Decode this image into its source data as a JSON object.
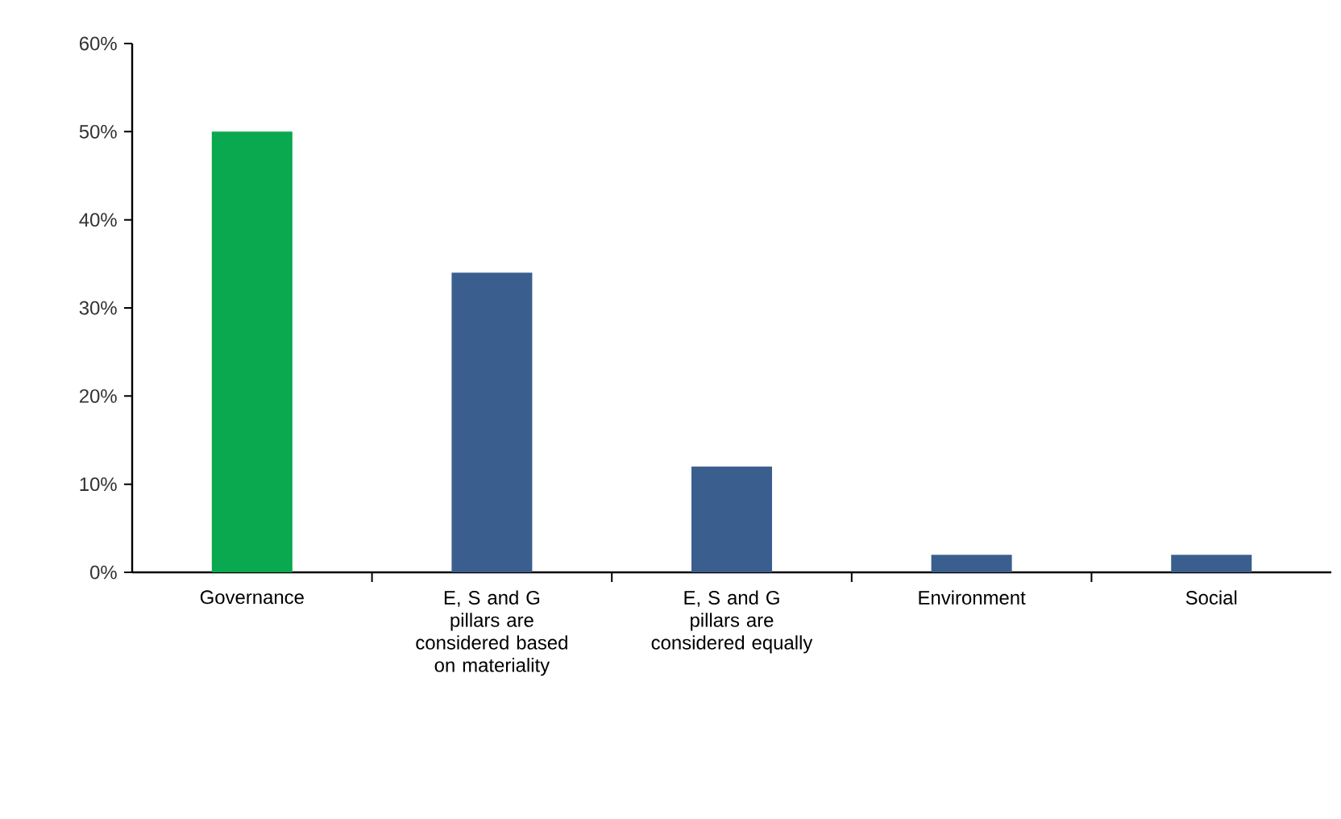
{
  "chart_data": {
    "type": "bar",
    "categories": [
      "Governance",
      "E, S and G pillars are considered based on materiality",
      "E, S and G pillars are considered equally",
      "Environment",
      "Social"
    ],
    "values": [
      50,
      34,
      12,
      2,
      2
    ],
    "colors": [
      "#0aa84f",
      "#3a5f8f",
      "#3a5f8f",
      "#3a5f8f",
      "#3a5f8f"
    ],
    "ylim": [
      0,
      60
    ],
    "yticks": [
      {
        "value": 0,
        "label": "0%"
      },
      {
        "value": 10,
        "label": "10%"
      },
      {
        "value": 20,
        "label": "20%"
      },
      {
        "value": 30,
        "label": "30%"
      },
      {
        "value": 40,
        "label": "40%"
      },
      {
        "value": 50,
        "label": "50%"
      },
      {
        "value": 60,
        "label": "60%"
      }
    ],
    "grid": false
  }
}
